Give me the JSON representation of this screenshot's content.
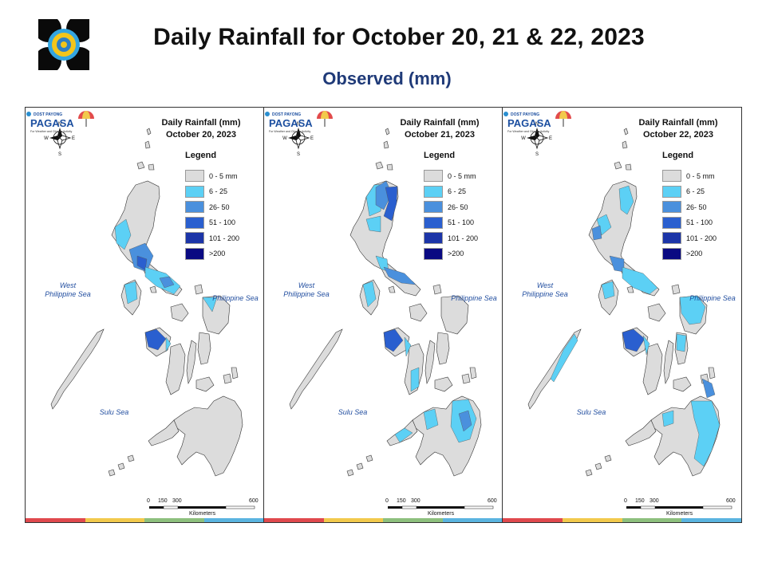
{
  "header": {
    "title": "Daily Rainfall for October 20, 21 & 22, 2023",
    "subtitle": "Observed (mm)"
  },
  "legend": {
    "title": "Legend",
    "items": [
      {
        "label": "0 - 5 mm",
        "color": "#dcdcdc"
      },
      {
        "label": "6 - 25",
        "color": "#5cd0f5"
      },
      {
        "label": "26- 50",
        "color": "#4a90dd"
      },
      {
        "label": "51 - 100",
        "color": "#2a5fcf"
      },
      {
        "label": "101 - 200",
        "color": "#1c35a8"
      },
      {
        "label": ">200",
        "color": "#0a0a82"
      }
    ]
  },
  "panels": [
    {
      "map_title": "Daily Rainfall (mm)",
      "date": "October 20, 2023"
    },
    {
      "map_title": "Daily Rainfall (mm)",
      "date": "October 21, 2023"
    },
    {
      "map_title": "Daily Rainfall (mm)",
      "date": "October 22, 2023"
    }
  ],
  "labels": {
    "west_sea": "West\nPhilippine Sea",
    "east_sea": "Philippine Sea",
    "sulu": "Sulu Sea",
    "compass": [
      "N",
      "E",
      "S",
      "W"
    ],
    "scale": [
      "0",
      "150",
      "300",
      "600"
    ],
    "scale_unit": "Kilometers",
    "brand": "PAGASA",
    "brand_small": "DOST PAYONG",
    "brand_tagline": "For Weather and Climate Activity"
  },
  "colors": {
    "stripe": [
      "#e0494d",
      "#f2c94c",
      "#8dc07d",
      "#5ab4e0"
    ]
  }
}
